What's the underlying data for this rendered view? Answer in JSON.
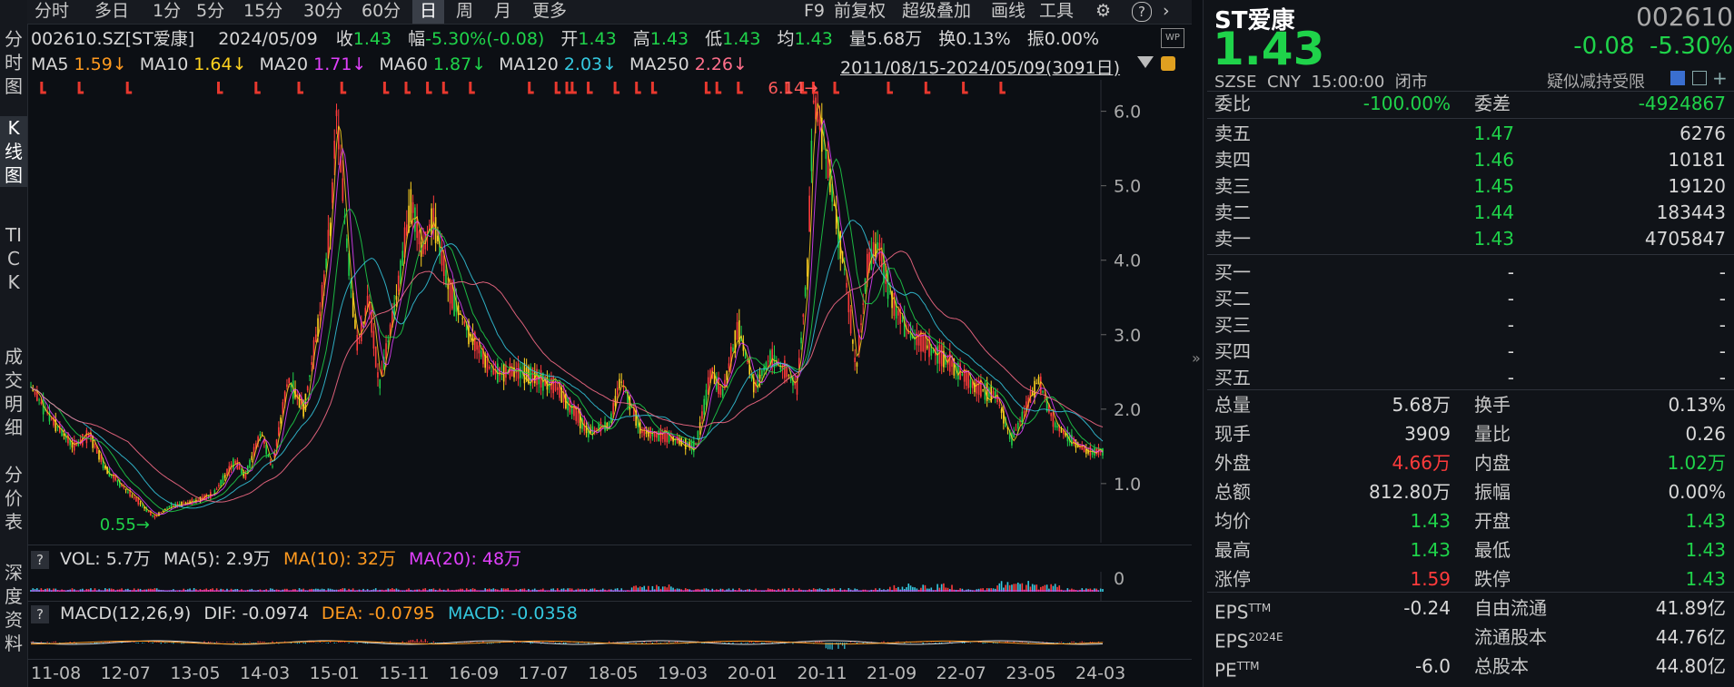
{
  "toolbar": {
    "left_items": [
      "分时",
      "多日",
      "1分",
      "5分",
      "15分",
      "30分",
      "60分",
      "日",
      "周",
      "月",
      "更多"
    ],
    "active": "日",
    "right_items": [
      "F9",
      "前复权",
      "超级叠加",
      "画线",
      "工具"
    ]
  },
  "side_tabs": [
    "分时图",
    "K线图",
    "TICK",
    "成交明细",
    "分价表",
    "深度资料"
  ],
  "side_active": "K线图",
  "header_info": {
    "code": "002610.SZ[ST爱康]",
    "date": "2024/05/09",
    "close_label": "收",
    "close": "1.43",
    "chg_label": "幅",
    "chg": "-5.30%(-0.08)",
    "open_label": "开",
    "open": "1.43",
    "high_label": "高",
    "high": "1.43",
    "low_label": "低",
    "low": "1.43",
    "avg_label": "均",
    "avg": "1.43",
    "vol_label": "量",
    "vol": "5.68万",
    "turn_label": "换",
    "turn": "0.13%",
    "amp_label": "振",
    "amp": "0.00%"
  },
  "ma_info": [
    {
      "label": "MA5",
      "value": "1.59↓",
      "color": "#ff9a1f"
    },
    {
      "label": "MA10",
      "value": "1.64↓",
      "color": "#ffd21f"
    },
    {
      "label": "MA20",
      "value": "1.71↓",
      "color": "#e040fb"
    },
    {
      "label": "MA60",
      "value": "1.87↓",
      "color": "#1fd34a"
    },
    {
      "label": "MA120",
      "value": "2.03↓",
      "color": "#35c9e0"
    },
    {
      "label": "MA250",
      "value": "2.26↓",
      "color": "#ff6f8b"
    }
  ],
  "range_text": "2011/08/15-2024/05/09(3091日)",
  "volume_info": {
    "vol_label": "VOL: 5.7万",
    "ma5": "MA(5): 2.9万",
    "ma10": "MA(10): 32万",
    "ma20": "MA(20): 48万"
  },
  "macd_info": {
    "title": "MACD(12,26,9)",
    "dif": "DIF: -0.0974",
    "dea": "DEA: -0.0795",
    "macd": "MACD: -0.0358"
  },
  "chart_data": {
    "type": "line",
    "series_name": "ST爱康 日K",
    "x_ticks": [
      "11-08",
      "12-07",
      "13-05",
      "14-03",
      "15-01",
      "15-11",
      "16-09",
      "17-07",
      "18-05",
      "19-03",
      "20-01",
      "20-11",
      "21-09",
      "22-07",
      "23-05",
      "24-03"
    ],
    "y_ticks": [
      1.0,
      2.0,
      3.0,
      4.0,
      5.0,
      6.0
    ],
    "ylim": [
      0.45,
      6.3
    ],
    "price_points": [
      {
        "t": 0,
        "p": 2.3
      },
      {
        "t": 0.02,
        "p": 1.85
      },
      {
        "t": 0.04,
        "p": 1.5
      },
      {
        "t": 0.055,
        "p": 1.65
      },
      {
        "t": 0.07,
        "p": 1.2
      },
      {
        "t": 0.09,
        "p": 0.9
      },
      {
        "t": 0.11,
        "p": 0.62
      },
      {
        "t": 0.115,
        "p": 0.55
      },
      {
        "t": 0.13,
        "p": 0.7
      },
      {
        "t": 0.15,
        "p": 0.75
      },
      {
        "t": 0.17,
        "p": 0.85
      },
      {
        "t": 0.19,
        "p": 1.3
      },
      {
        "t": 0.2,
        "p": 1.1
      },
      {
        "t": 0.215,
        "p": 1.7
      },
      {
        "t": 0.225,
        "p": 1.2
      },
      {
        "t": 0.24,
        "p": 2.4
      },
      {
        "t": 0.255,
        "p": 2.0
      },
      {
        "t": 0.27,
        "p": 3.3
      },
      {
        "t": 0.28,
        "p": 4.5
      },
      {
        "t": 0.285,
        "p": 6.0
      },
      {
        "t": 0.295,
        "p": 4.2
      },
      {
        "t": 0.305,
        "p": 2.8
      },
      {
        "t": 0.315,
        "p": 3.5
      },
      {
        "t": 0.325,
        "p": 2.3
      },
      {
        "t": 0.34,
        "p": 3.4
      },
      {
        "t": 0.355,
        "p": 4.8
      },
      {
        "t": 0.365,
        "p": 4.1
      },
      {
        "t": 0.375,
        "p": 4.6
      },
      {
        "t": 0.39,
        "p": 3.6
      },
      {
        "t": 0.41,
        "p": 3.0
      },
      {
        "t": 0.43,
        "p": 2.5
      },
      {
        "t": 0.46,
        "p": 2.5
      },
      {
        "t": 0.49,
        "p": 2.3
      },
      {
        "t": 0.52,
        "p": 1.7
      },
      {
        "t": 0.54,
        "p": 1.8
      },
      {
        "t": 0.55,
        "p": 2.4
      },
      {
        "t": 0.57,
        "p": 1.7
      },
      {
        "t": 0.6,
        "p": 1.6
      },
      {
        "t": 0.62,
        "p": 1.5
      },
      {
        "t": 0.635,
        "p": 2.5
      },
      {
        "t": 0.645,
        "p": 2.2
      },
      {
        "t": 0.66,
        "p": 3.1
      },
      {
        "t": 0.675,
        "p": 2.3
      },
      {
        "t": 0.69,
        "p": 2.7
      },
      {
        "t": 0.705,
        "p": 2.5
      },
      {
        "t": 0.715,
        "p": 2.3
      },
      {
        "t": 0.725,
        "p": 4.0
      },
      {
        "t": 0.73,
        "p": 6.14
      },
      {
        "t": 0.74,
        "p": 5.6
      },
      {
        "t": 0.75,
        "p": 4.7
      },
      {
        "t": 0.76,
        "p": 3.8
      },
      {
        "t": 0.77,
        "p": 2.5
      },
      {
        "t": 0.78,
        "p": 3.9
      },
      {
        "t": 0.79,
        "p": 4.2
      },
      {
        "t": 0.805,
        "p": 3.4
      },
      {
        "t": 0.82,
        "p": 3.0
      },
      {
        "t": 0.84,
        "p": 2.8
      },
      {
        "t": 0.86,
        "p": 2.6
      },
      {
        "t": 0.88,
        "p": 2.3
      },
      {
        "t": 0.9,
        "p": 2.2
      },
      {
        "t": 0.915,
        "p": 1.6
      },
      {
        "t": 0.925,
        "p": 1.9
      },
      {
        "t": 0.94,
        "p": 2.4
      },
      {
        "t": 0.955,
        "p": 1.8
      },
      {
        "t": 0.97,
        "p": 1.6
      },
      {
        "t": 0.985,
        "p": 1.43
      }
    ],
    "annotations": [
      {
        "label": "6.14",
        "t": 0.73,
        "p": 6.14
      },
      {
        "label": "0.55",
        "t": 0.115,
        "p": 0.55
      }
    ],
    "vol_axis": "0"
  },
  "quote": {
    "name": "ST爱康",
    "code": "002610",
    "price": "1.43",
    "change": "-0.08",
    "change_pct": "-5.30%",
    "meta": "SZSE  CNY  15:00:00  闭市",
    "note": "疑似减持受限",
    "weibi_label": "委比",
    "weibi": "-100.00%",
    "weicha_label": "委差",
    "weicha": "-4924867",
    "asks": [
      {
        "label": "卖五",
        "price": "1.47",
        "vol": "6276"
      },
      {
        "label": "卖四",
        "price": "1.46",
        "vol": "10181"
      },
      {
        "label": "卖三",
        "price": "1.45",
        "vol": "19120"
      },
      {
        "label": "卖二",
        "price": "1.44",
        "vol": "183443"
      },
      {
        "label": "卖一",
        "price": "1.43",
        "vol": "4705847"
      }
    ],
    "bids": [
      {
        "label": "买一",
        "price": "-",
        "vol": "-"
      },
      {
        "label": "买二",
        "price": "-",
        "vol": "-"
      },
      {
        "label": "买三",
        "price": "-",
        "vol": "-"
      },
      {
        "label": "买四",
        "price": "-",
        "vol": "-"
      },
      {
        "label": "买五",
        "price": "-",
        "vol": "-"
      }
    ],
    "stats": [
      {
        "l1": "总量",
        "v1": "5.68万",
        "c1": "#d8d8d8",
        "l2": "换手",
        "v2": "0.13%",
        "c2": "#d8d8d8"
      },
      {
        "l1": "现手",
        "v1": "3909",
        "c1": "#d8d8d8",
        "l2": "量比",
        "v2": "0.26",
        "c2": "#d8d8d8"
      },
      {
        "l1": "外盘",
        "v1": "4.66万",
        "c1": "#ff3b3b",
        "l2": "内盘",
        "v2": "1.02万",
        "c2": "#1fd34a"
      },
      {
        "l1": "总额",
        "v1": "812.80万",
        "c1": "#d8d8d8",
        "l2": "振幅",
        "v2": "0.00%",
        "c2": "#d8d8d8"
      },
      {
        "l1": "均价",
        "v1": "1.43",
        "c1": "#1fd34a",
        "l2": "开盘",
        "v2": "1.43",
        "c2": "#1fd34a"
      },
      {
        "l1": "最高",
        "v1": "1.43",
        "c1": "#1fd34a",
        "l2": "最低",
        "v2": "1.43",
        "c2": "#1fd34a"
      },
      {
        "l1": "涨停",
        "v1": "1.59",
        "c1": "#ff3b3b",
        "l2": "跌停",
        "v2": "1.43",
        "c2": "#1fd34a"
      }
    ],
    "fin": [
      {
        "l1": "EPS",
        "sup1": "TTM",
        "v1": "-0.24",
        "l2": "自由流通",
        "v2": "41.89亿"
      },
      {
        "l1": "EPS",
        "sup1": "2024E",
        "v1": "",
        "l2": "流通股本",
        "v2": "44.76亿"
      },
      {
        "l1": "PE",
        "sup1": "TTM",
        "v1": "-6.0",
        "l2": "总股本",
        "v2": "44.80亿"
      }
    ]
  },
  "colors": {
    "up": "#ff3b3b",
    "down": "#1fd34a",
    "ma5": "#ff9a1f",
    "ma10": "#ffd21f",
    "ma20": "#e040fb",
    "ma60": "#1fd34a",
    "ma120": "#35c9e0",
    "ma250": "#ff6f8b"
  }
}
